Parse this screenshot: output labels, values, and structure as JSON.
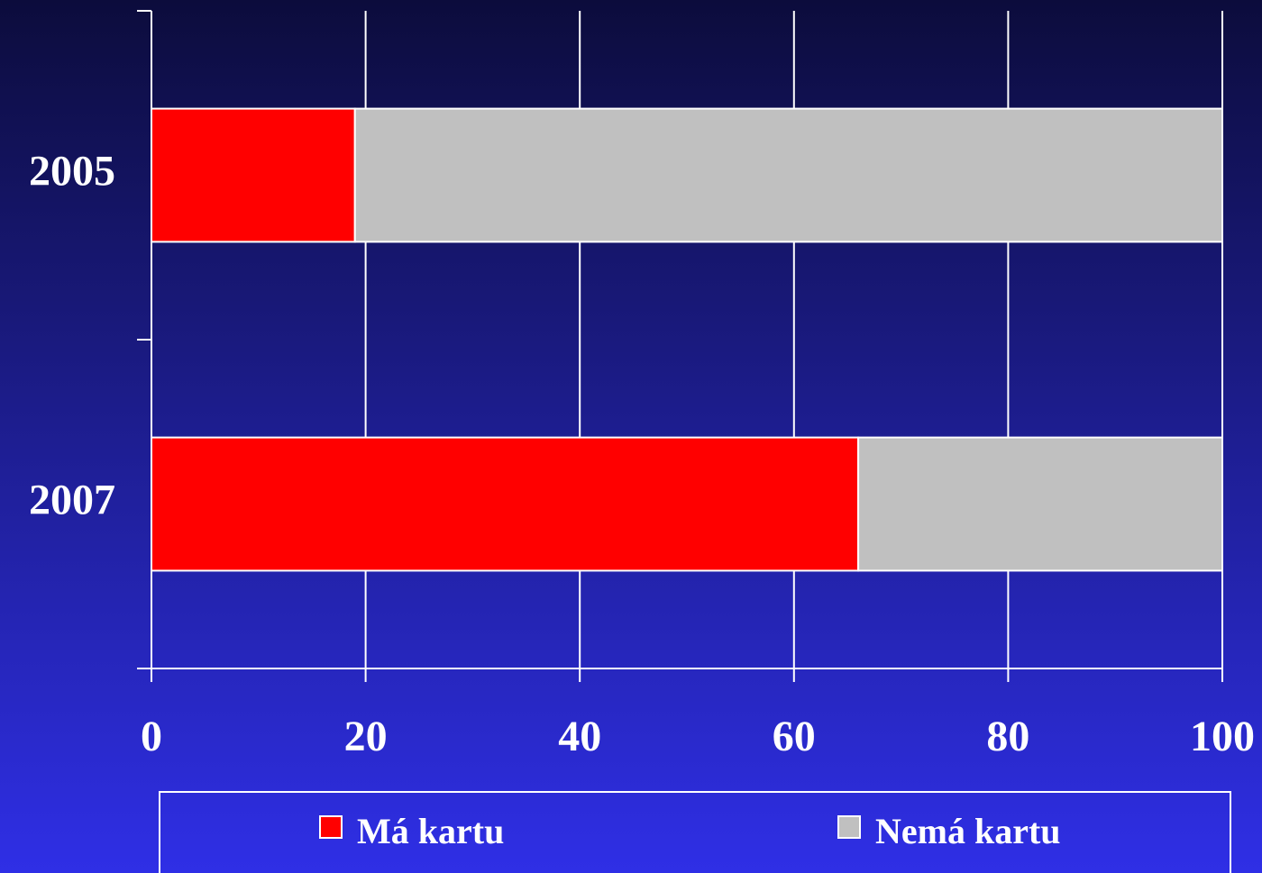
{
  "chart_data": {
    "type": "stacked-barh",
    "categories": [
      "2005",
      "2007"
    ],
    "series": [
      {
        "name": "Má kartu",
        "color": "#ff0000",
        "values": [
          19,
          66
        ]
      },
      {
        "name": "Nemá kartu",
        "color": "#c0c0c0",
        "values": [
          81,
          34
        ]
      }
    ],
    "xlim": [
      0,
      100
    ],
    "xticks": [
      0,
      20,
      40,
      60,
      80,
      100
    ],
    "grid": true,
    "legend": "bottom"
  }
}
